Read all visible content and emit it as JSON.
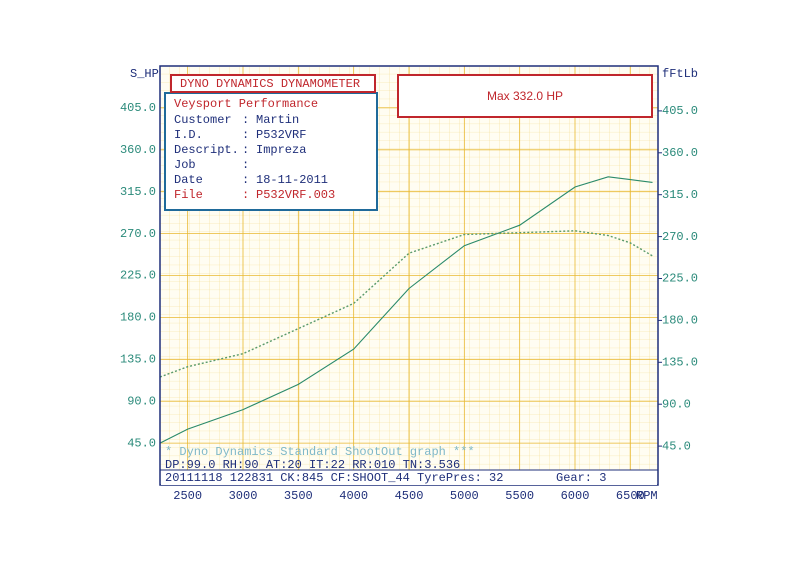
{
  "chart_data": {
    "type": "line",
    "y_title": "S_HP",
    "y2_title": "fFtLb",
    "x_title": "RPM",
    "max_label": "Max 332.0 HP",
    "info_box": {
      "title": "DYNO DYNAMICS DYNAMOMETER",
      "company": "Veysport Performance",
      "sep": ":",
      "rows": [
        [
          "Customer",
          "Martin"
        ],
        [
          "I.D.",
          "P532VRF"
        ],
        [
          "Descript.",
          "Impreza"
        ],
        [
          "Job"
        ],
        [
          "Date",
          "18-11-2011"
        ],
        [
          "File",
          "P532VRF.003"
        ]
      ]
    },
    "footer": [
      "* Dyno Dynamics Standard ShootOut graph ***",
      "DP:99.0  RH:90 AT:20 IT:22  RR:010 TN:3.536",
      "20111118 122831 CK:845 CF:SHOOT_44 TyrePres: 32",
      "Gear: 3"
    ],
    "xlim": [
      2250,
      6750
    ],
    "xticks": [
      2500,
      3000,
      3500,
      4000,
      4500,
      5000,
      5500,
      6000,
      6500
    ],
    "ylim": [
      0,
      450
    ],
    "yticks": [
      {
        "value": 45,
        "label": "45.0"
      },
      {
        "value": 90,
        "label": "90.0"
      },
      {
        "value": 135,
        "label": "135.0"
      },
      {
        "value": 180,
        "label": "180.0"
      },
      {
        "value": 225,
        "label": "225.0"
      },
      {
        "value": 270,
        "label": "270.0"
      },
      {
        "value": 315,
        "label": "315.0"
      },
      {
        "value": 360,
        "label": "360.0"
      },
      {
        "value": 405,
        "label": "405.0"
      }
    ],
    "y2lim": [
      0,
      450
    ],
    "y2ticks": [
      {
        "value": 45,
        "label": "45.0"
      },
      {
        "value": 90,
        "label": "90.0"
      },
      {
        "value": 135,
        "label": "135.0"
      },
      {
        "value": 180,
        "label": "180.0"
      },
      {
        "value": 225,
        "label": "225.0"
      },
      {
        "value": 270,
        "label": "270.0"
      },
      {
        "value": 315,
        "label": "315.0"
      },
      {
        "value": 360,
        "label": "360.0"
      },
      {
        "value": 405,
        "label": "405.0"
      }
    ],
    "grid": true,
    "x": [
      2250,
      2500,
      3000,
      3500,
      4000,
      4500,
      5000,
      5500,
      6000,
      6300,
      6500,
      6700
    ],
    "series": [
      {
        "color": "#2a8a6a",
        "dashed": false,
        "values": [
          45,
          60,
          81,
          108,
          146,
          211,
          257,
          279,
          320,
          331,
          328,
          325
        ]
      },
      {
        "color": "#5a9a6a",
        "dashed": true,
        "axis": "y2",
        "values": [
          116,
          127,
          141,
          168,
          195,
          249,
          269,
          271,
          273,
          268,
          260,
          246
        ]
      }
    ]
  }
}
